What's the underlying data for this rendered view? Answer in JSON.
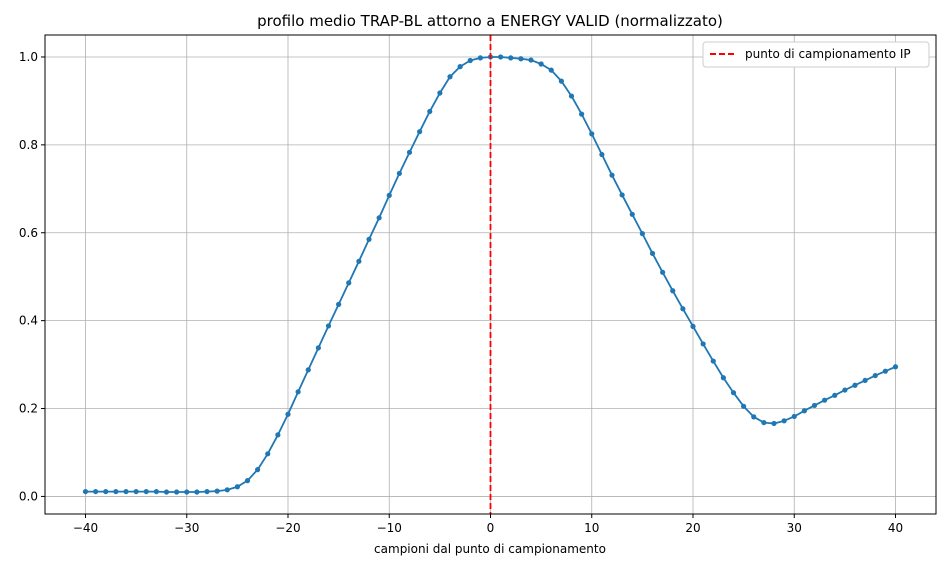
{
  "chart_data": {
    "type": "line",
    "title": "profilo medio TRAP-BL attorno a ENERGY VALID (normalizzato)",
    "xlabel": "campioni dal punto di campionamento",
    "ylabel": "",
    "xlim": [
      -44,
      44
    ],
    "ylim": [
      -0.04,
      1.05
    ],
    "xticks": [
      -40,
      -30,
      -20,
      -10,
      0,
      10,
      20,
      30,
      40
    ],
    "xtick_labels": [
      "−40",
      "−30",
      "−20",
      "−10",
      "0",
      "10",
      "20",
      "30",
      "40"
    ],
    "yticks": [
      0.0,
      0.2,
      0.4,
      0.6,
      0.8,
      1.0
    ],
    "ytick_labels": [
      "0.0",
      "0.2",
      "0.4",
      "0.6",
      "0.8",
      "1.0"
    ],
    "grid": true,
    "legend_position": "top-right",
    "series": [
      {
        "name": "",
        "color": "#1f77b4",
        "marker": "circle",
        "x": [
          -40,
          -39,
          -38,
          -37,
          -36,
          -35,
          -34,
          -33,
          -32,
          -31,
          -30,
          -29,
          -28,
          -27,
          -26,
          -25,
          -24,
          -23,
          -22,
          -21,
          -20,
          -19,
          -18,
          -17,
          -16,
          -15,
          -14,
          -13,
          -12,
          -11,
          -10,
          -9,
          -8,
          -7,
          -6,
          -5,
          -4,
          -3,
          -2,
          -1,
          0,
          1,
          2,
          3,
          4,
          5,
          6,
          7,
          8,
          9,
          10,
          11,
          12,
          13,
          14,
          15,
          16,
          17,
          18,
          19,
          20,
          21,
          22,
          23,
          24,
          25,
          26,
          27,
          28,
          29,
          30,
          31,
          32,
          33,
          34,
          35,
          36,
          37,
          38,
          39,
          40
        ],
        "y": [
          0.011,
          0.011,
          0.011,
          0.011,
          0.011,
          0.011,
          0.011,
          0.011,
          0.01,
          0.01,
          0.01,
          0.01,
          0.011,
          0.012,
          0.015,
          0.022,
          0.036,
          0.061,
          0.097,
          0.14,
          0.187,
          0.238,
          0.288,
          0.338,
          0.388,
          0.437,
          0.486,
          0.535,
          0.585,
          0.634,
          0.685,
          0.735,
          0.783,
          0.83,
          0.876,
          0.918,
          0.955,
          0.978,
          0.992,
          0.998,
          1.0,
          1.0,
          0.998,
          0.996,
          0.993,
          0.984,
          0.97,
          0.945,
          0.911,
          0.87,
          0.825,
          0.778,
          0.731,
          0.686,
          0.642,
          0.598,
          0.553,
          0.51,
          0.468,
          0.427,
          0.387,
          0.347,
          0.308,
          0.27,
          0.236,
          0.205,
          0.181,
          0.168,
          0.166,
          0.172,
          0.182,
          0.195,
          0.207,
          0.219,
          0.23,
          0.242,
          0.253,
          0.264,
          0.275,
          0.285,
          0.295
        ]
      }
    ],
    "vline": {
      "x": 0,
      "color": "#ff0000",
      "style": "dashed",
      "label": "punto di campionamento IP"
    }
  }
}
